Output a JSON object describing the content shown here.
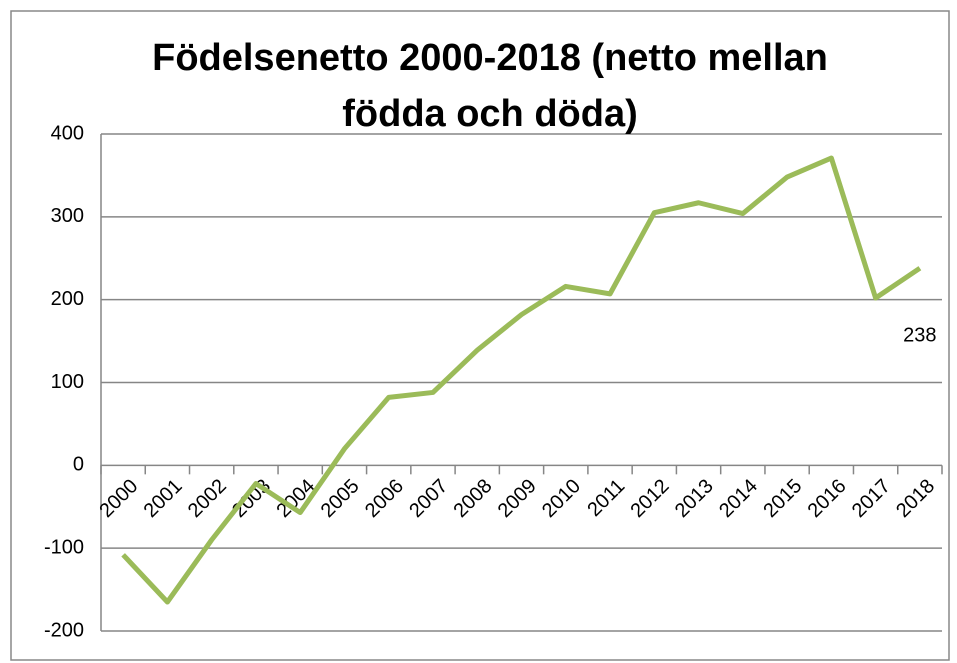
{
  "chart_data": {
    "type": "line",
    "title": "Födelsenetto 2000-2018 (netto mellan födda och döda)",
    "categories": [
      "2000",
      "2001",
      "2002",
      "2003",
      "2004",
      "2005",
      "2006",
      "2007",
      "2008",
      "2009",
      "2010",
      "2011",
      "2012",
      "2013",
      "2014",
      "2015",
      "2016",
      "2017",
      "2018"
    ],
    "series": [
      {
        "name": "Födelsenetto",
        "color": "#9bbb59",
        "values": [
          -108,
          -165,
          -90,
          -22,
          -57,
          20,
          82,
          88,
          139,
          182,
          216,
          207,
          305,
          317,
          304,
          348,
          371,
          202,
          238
        ]
      }
    ],
    "value_labels": [
      null,
      null,
      null,
      null,
      null,
      null,
      null,
      null,
      null,
      null,
      null,
      null,
      null,
      null,
      null,
      null,
      null,
      null,
      "238"
    ],
    "ylim": [
      -200,
      400
    ],
    "yticks": [
      -200,
      -100,
      0,
      100,
      200,
      300,
      400
    ],
    "grid": true
  }
}
